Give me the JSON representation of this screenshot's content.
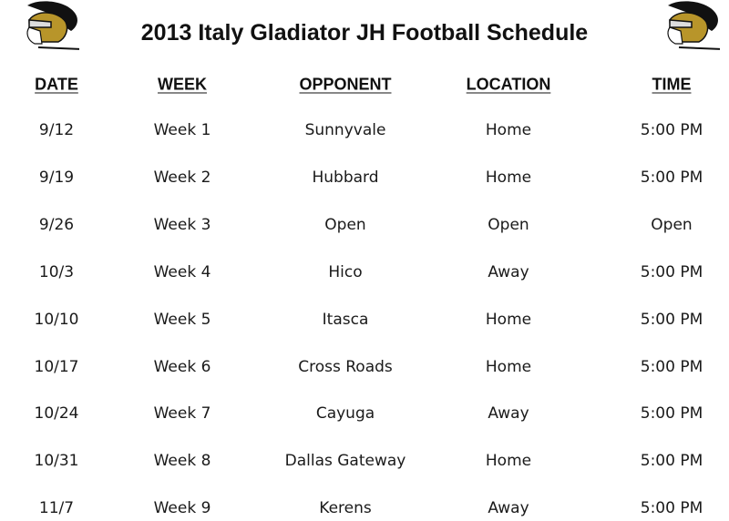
{
  "title": "2013 Italy Gladiator JH Football Schedule",
  "colors": {
    "helmet_gold": "#b8952a",
    "crest_black": "#111111"
  },
  "headers": [
    "DATE",
    "WEEK",
    "OPPONENT",
    "LOCATION",
    "TIME"
  ],
  "rows": [
    [
      "9/12",
      "Week 1",
      "Sunnyvale",
      "Home",
      "5:00 PM"
    ],
    [
      "9/19",
      "Week 2",
      "Hubbard",
      "Home",
      "5:00 PM"
    ],
    [
      "9/26",
      "Week 3",
      "Open",
      "Open",
      "Open"
    ],
    [
      "10/3",
      "Week 4",
      "Hico",
      "Away",
      "5:00 PM"
    ],
    [
      "10/10",
      "Week 5",
      "Itasca",
      "Home",
      "5:00 PM"
    ],
    [
      "10/17",
      "Week 6",
      "Cross Roads",
      "Home",
      "5:00 PM"
    ],
    [
      "10/24",
      "Week 7",
      "Cayuga",
      "Away",
      "5:00 PM"
    ],
    [
      "10/31",
      "Week 8",
      "Dallas Gateway",
      "Home",
      "5:00 PM"
    ],
    [
      "11/7",
      "Week 9",
      "Kerens",
      "Away",
      "5:00 PM"
    ]
  ]
}
